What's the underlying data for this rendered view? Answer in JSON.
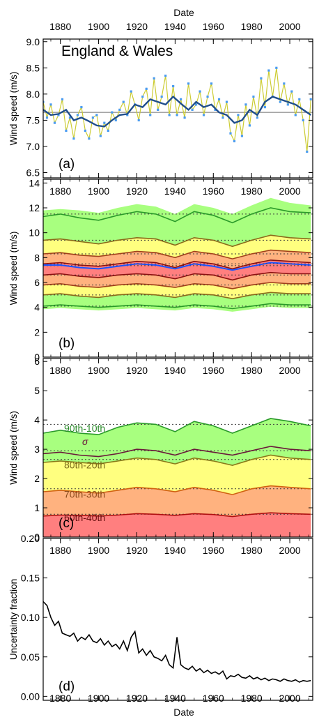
{
  "top_xlabel": "Date",
  "bottom_xlabel": "Date",
  "x_ticks": [
    1880,
    1900,
    1920,
    1940,
    1960,
    1980,
    2000
  ],
  "xlim": [
    1871,
    2012
  ],
  "colors": {
    "band_90_10": "#a8ff7f",
    "band_80_20": "#ffff7f",
    "band_70_30": "#ffb27f",
    "band_60_40": "#ff7f7f",
    "mean_line": "#1f4e8c",
    "annual_points": "#4b9cf0",
    "annual_line": "#cccc33"
  },
  "chart_data": [
    {
      "type": "line",
      "panel": "(a)",
      "title": "England & Wales",
      "ylabel": "Wind speed (m/s)",
      "ylim": [
        6.4,
        9.05
      ],
      "y_ticks": [
        "6.5",
        "7.0",
        "7.5",
        "8.0",
        "8.5",
        "9.0"
      ],
      "reference_line": 7.65,
      "series": [
        {
          "role": "annual",
          "x": [
            1871,
            1873,
            1875,
            1877,
            1879,
            1881,
            1883,
            1885,
            1887,
            1889,
            1891,
            1893,
            1895,
            1897,
            1899,
            1901,
            1903,
            1905,
            1907,
            1909,
            1911,
            1913,
            1915,
            1917,
            1919,
            1921,
            1923,
            1925,
            1927,
            1929,
            1931,
            1933,
            1935,
            1937,
            1939,
            1941,
            1943,
            1945,
            1947,
            1949,
            1951,
            1953,
            1955,
            1957,
            1959,
            1961,
            1963,
            1965,
            1967,
            1969,
            1971,
            1973,
            1975,
            1977,
            1979,
            1981,
            1983,
            1985,
            1987,
            1989,
            1991,
            1993,
            1995,
            1997,
            1999,
            2001,
            2003,
            2005,
            2007,
            2009,
            2011
          ],
          "values": [
            7.85,
            7.55,
            7.8,
            7.45,
            7.6,
            7.9,
            7.3,
            7.55,
            7.15,
            7.6,
            7.75,
            7.3,
            7.15,
            7.55,
            7.6,
            7.2,
            7.45,
            7.3,
            7.65,
            7.5,
            7.7,
            7.85,
            7.6,
            8.05,
            7.8,
            7.5,
            7.95,
            8.1,
            7.6,
            8.3,
            7.7,
            7.95,
            8.35,
            7.6,
            8.15,
            7.6,
            7.9,
            7.55,
            8.2,
            7.7,
            7.8,
            8.05,
            7.6,
            7.95,
            8.2,
            7.7,
            7.9,
            7.55,
            7.85,
            7.25,
            7.1,
            7.6,
            7.2,
            7.8,
            7.4,
            7.95,
            7.55,
            8.3,
            7.75,
            8.45,
            7.95,
            8.5,
            7.85,
            8.2,
            7.8,
            8.05,
            7.6,
            7.9,
            7.5,
            6.9,
            7.9
          ]
        },
        {
          "role": "smoothed",
          "x": [
            1871,
            1875,
            1879,
            1883,
            1887,
            1891,
            1895,
            1899,
            1903,
            1907,
            1911,
            1915,
            1919,
            1923,
            1927,
            1931,
            1935,
            1939,
            1943,
            1947,
            1951,
            1955,
            1959,
            1963,
            1967,
            1971,
            1975,
            1979,
            1983,
            1987,
            1991,
            1995,
            1999,
            2003,
            2007,
            2011
          ],
          "values": [
            7.7,
            7.6,
            7.62,
            7.7,
            7.5,
            7.55,
            7.48,
            7.4,
            7.38,
            7.5,
            7.6,
            7.62,
            7.8,
            7.75,
            7.9,
            7.85,
            7.8,
            7.95,
            7.82,
            7.7,
            7.85,
            7.75,
            7.8,
            7.65,
            7.6,
            7.45,
            7.5,
            7.7,
            7.6,
            7.85,
            7.95,
            7.9,
            7.85,
            7.8,
            7.7,
            7.6
          ]
        }
      ]
    },
    {
      "type": "area",
      "panel": "(b)",
      "ylabel": "Wind speed (m/s)",
      "ylim": [
        0,
        14.3
      ],
      "y_ticks": [
        "0",
        "2",
        "4",
        "6",
        "8",
        "10",
        "12",
        "14"
      ],
      "x": [
        1871,
        1880,
        1890,
        1900,
        1910,
        1920,
        1930,
        1940,
        1950,
        1960,
        1970,
        1980,
        1990,
        2000,
        2011
      ],
      "percentile_lines": [
        {
          "name": "10th",
          "values": [
            4.1,
            4.2,
            4.1,
            4.0,
            4.1,
            4.2,
            4.1,
            4.0,
            4.2,
            4.1,
            3.9,
            4.1,
            4.3,
            4.2,
            4.2
          ],
          "mean": 4.1
        },
        {
          "name": "20th",
          "values": [
            5.0,
            5.1,
            4.9,
            4.8,
            5.0,
            5.1,
            5.0,
            4.8,
            5.1,
            5.0,
            4.7,
            5.0,
            5.2,
            5.1,
            5.1
          ],
          "mean": 5.0
        },
        {
          "name": "30th",
          "values": [
            5.8,
            5.9,
            5.7,
            5.6,
            5.8,
            5.9,
            5.8,
            5.6,
            5.9,
            5.8,
            5.5,
            5.8,
            6.0,
            5.9,
            5.9
          ],
          "mean": 5.8
        },
        {
          "name": "40th",
          "values": [
            6.6,
            6.7,
            6.5,
            6.4,
            6.6,
            6.7,
            6.6,
            6.3,
            6.7,
            6.6,
            6.2,
            6.6,
            6.8,
            6.7,
            6.7
          ],
          "mean": 6.6
        },
        {
          "name": "mean",
          "values": [
            7.4,
            7.4,
            7.2,
            7.1,
            7.3,
            7.5,
            7.4,
            7.1,
            7.5,
            7.3,
            7.0,
            7.3,
            7.6,
            7.5,
            7.4
          ],
          "mean": 7.35
        },
        {
          "name": "60th",
          "values": [
            7.5,
            7.6,
            7.4,
            7.3,
            7.5,
            7.7,
            7.6,
            7.2,
            7.7,
            7.5,
            7.1,
            7.5,
            7.8,
            7.7,
            7.6
          ],
          "mean": 7.5
        },
        {
          "name": "70th",
          "values": [
            8.3,
            8.4,
            8.2,
            8.1,
            8.3,
            8.5,
            8.4,
            8.0,
            8.5,
            8.3,
            7.9,
            8.3,
            8.6,
            8.5,
            8.4
          ],
          "mean": 8.3
        },
        {
          "name": "80th",
          "values": [
            9.4,
            9.5,
            9.3,
            9.1,
            9.4,
            9.6,
            9.5,
            9.0,
            9.6,
            9.4,
            8.9,
            9.4,
            9.8,
            9.6,
            9.5
          ],
          "mean": 9.4
        },
        {
          "name": "90th",
          "values": [
            11.3,
            11.5,
            11.2,
            11.0,
            11.4,
            11.7,
            11.5,
            10.9,
            11.7,
            11.4,
            10.8,
            11.5,
            12.0,
            11.7,
            11.6
          ],
          "mean": 11.5
        }
      ],
      "band_envelope_max": [
        11.8,
        11.9,
        11.8,
        11.6,
        12.0,
        12.3,
        12.1,
        11.5,
        12.3,
        12.0,
        11.5,
        12.2,
        12.8,
        12.4,
        12.2
      ]
    },
    {
      "type": "area",
      "panel": "(c)",
      "ylabel": "Wind speed (m/s)",
      "ylim": [
        0,
        6.1
      ],
      "y_ticks": [
        "0",
        "1",
        "2",
        "3",
        "4",
        "5",
        "6"
      ],
      "x": [
        1871,
        1880,
        1890,
        1900,
        1910,
        1920,
        1930,
        1940,
        1950,
        1960,
        1970,
        1980,
        1990,
        2000,
        2011
      ],
      "bands": [
        {
          "name": "90th-10th",
          "values": [
            3.55,
            3.65,
            3.55,
            3.5,
            3.75,
            3.9,
            3.85,
            3.6,
            3.95,
            3.8,
            3.55,
            3.8,
            4.05,
            3.95,
            3.8
          ],
          "mean": 3.85
        },
        {
          "name": "sigma",
          "values": [
            2.85,
            2.9,
            2.8,
            2.75,
            2.85,
            3.0,
            2.95,
            2.8,
            3.0,
            2.9,
            2.8,
            2.95,
            3.1,
            3.0,
            2.95
          ],
          "mean": 2.95
        },
        {
          "name": "80th-20th",
          "values": [
            2.55,
            2.6,
            2.55,
            2.5,
            2.6,
            2.7,
            2.65,
            2.5,
            2.7,
            2.6,
            2.45,
            2.65,
            2.8,
            2.7,
            2.65
          ],
          "mean": 2.65
        },
        {
          "name": "70th-30th",
          "values": [
            1.55,
            1.6,
            1.55,
            1.5,
            1.6,
            1.7,
            1.65,
            1.55,
            1.7,
            1.6,
            1.45,
            1.65,
            1.75,
            1.7,
            1.65
          ],
          "mean": 1.65
        },
        {
          "name": "60th-40th",
          "values": [
            0.72,
            0.75,
            0.74,
            0.72,
            0.75,
            0.8,
            0.78,
            0.74,
            0.8,
            0.77,
            0.7,
            0.78,
            0.83,
            0.8,
            0.78
          ],
          "mean": 0.78
        }
      ],
      "labels": [
        "90th-10th",
        "σ",
        "80th-20th",
        "70th-30th",
        "60th-40th"
      ]
    },
    {
      "type": "line",
      "panel": "(d)",
      "ylabel": "Uncertainty fraction",
      "ylim": [
        -0.005,
        0.2
      ],
      "y_ticks": [
        "0.00",
        "0.05",
        "0.10",
        "0.15",
        "0.20"
      ],
      "x": [
        1871,
        1873,
        1875,
        1877,
        1879,
        1881,
        1883,
        1885,
        1887,
        1889,
        1891,
        1893,
        1895,
        1897,
        1899,
        1901,
        1903,
        1905,
        1907,
        1909,
        1911,
        1913,
        1915,
        1917,
        1919,
        1921,
        1923,
        1925,
        1927,
        1929,
        1931,
        1933,
        1935,
        1937,
        1939,
        1941,
        1943,
        1945,
        1947,
        1949,
        1951,
        1953,
        1955,
        1957,
        1959,
        1961,
        1963,
        1965,
        1967,
        1969,
        1971,
        1973,
        1975,
        1977,
        1979,
        1981,
        1983,
        1985,
        1987,
        1989,
        1991,
        1993,
        1995,
        1997,
        1999,
        2001,
        2003,
        2005,
        2007,
        2009,
        2011
      ],
      "values": [
        0.12,
        0.115,
        0.1,
        0.09,
        0.095,
        0.08,
        0.078,
        0.076,
        0.08,
        0.07,
        0.075,
        0.072,
        0.078,
        0.07,
        0.068,
        0.073,
        0.065,
        0.07,
        0.063,
        0.066,
        0.06,
        0.07,
        0.058,
        0.075,
        0.082,
        0.055,
        0.06,
        0.052,
        0.058,
        0.05,
        0.048,
        0.045,
        0.052,
        0.04,
        0.036,
        0.075,
        0.04,
        0.036,
        0.034,
        0.038,
        0.032,
        0.035,
        0.03,
        0.033,
        0.029,
        0.031,
        0.028,
        0.032,
        0.022,
        0.026,
        0.025,
        0.028,
        0.024,
        0.023,
        0.026,
        0.022,
        0.024,
        0.021,
        0.023,
        0.02,
        0.022,
        0.021,
        0.019,
        0.022,
        0.02,
        0.019,
        0.021,
        0.018,
        0.02,
        0.019,
        0.02
      ]
    }
  ]
}
